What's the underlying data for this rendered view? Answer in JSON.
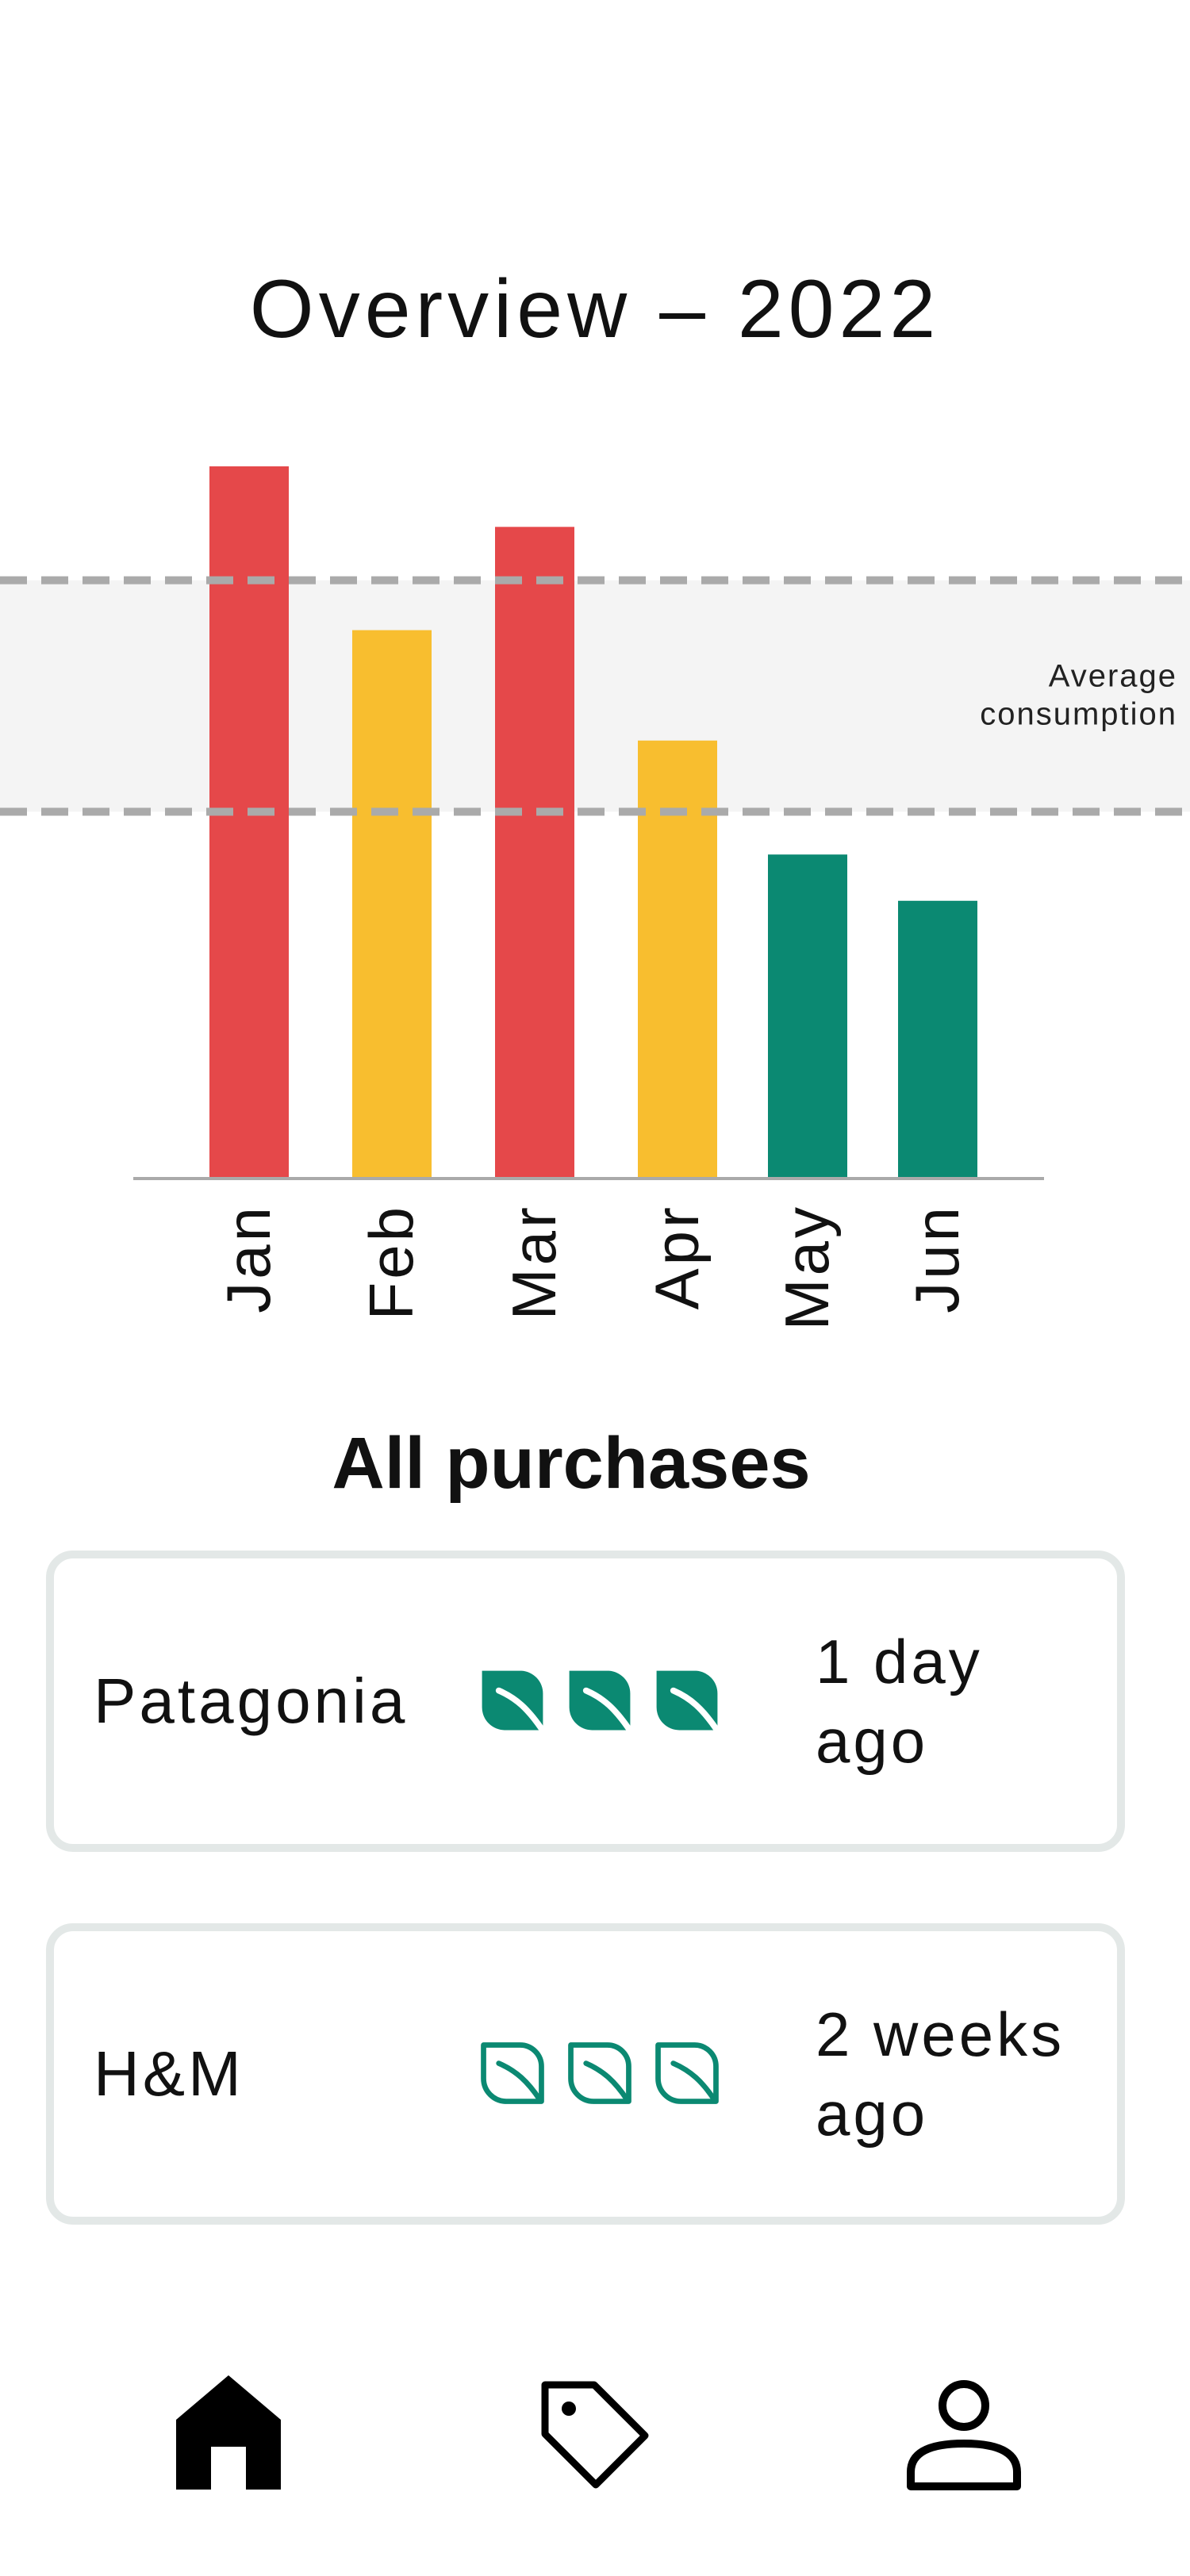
{
  "overview": {
    "title": "Overview – 2022"
  },
  "chart_data": {
    "type": "bar",
    "title": "Overview – 2022",
    "categories": [
      "Jan",
      "Feb",
      "Mar",
      "Apr",
      "May",
      "Jun"
    ],
    "values": [
      100,
      77,
      91.5,
      61.5,
      45.5,
      39
    ],
    "colors": [
      "#e5484a",
      "#f8be2f",
      "#e5484a",
      "#f8be2f",
      "#0b8972",
      "#0b8972"
    ],
    "ylim": [
      0,
      100
    ],
    "average_band": {
      "label_line1": "Average",
      "label_line2": "consumption",
      "low": 51.5,
      "high": 84
    },
    "band_fill": "#f4f4f4",
    "band_line_color": "#aaaaaa",
    "axis_color": "#aaaaaa"
  },
  "purchases": {
    "title": "All purchases",
    "leaf_color": "#0b8972",
    "items": [
      {
        "brand": "Patagonia",
        "when_line1": "1 day",
        "when_line2": "ago",
        "leaf_style": "filled",
        "leaf_count": 3
      },
      {
        "brand": "H&M",
        "when_line1": "2 weeks",
        "when_line2": "ago",
        "leaf_style": "outline",
        "leaf_count": 3
      }
    ]
  },
  "nav": {
    "items": [
      {
        "icon": "home-icon",
        "active": true
      },
      {
        "icon": "tag-icon",
        "active": false
      },
      {
        "icon": "user-icon",
        "active": false
      }
    ]
  }
}
